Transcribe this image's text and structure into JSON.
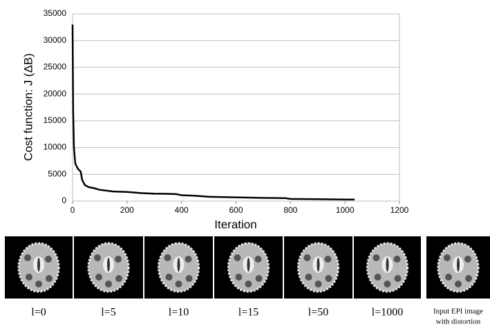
{
  "chart_data": {
    "type": "line",
    "ylabel": "Cost function: J (ΔB)",
    "xlabel": "Iteration",
    "x": [
      0,
      2,
      5,
      10,
      20,
      30,
      35,
      45,
      60,
      80,
      100,
      150,
      200,
      250,
      300,
      350,
      380,
      400,
      450,
      500,
      600,
      700,
      780,
      800,
      900,
      1000,
      1035
    ],
    "series": [
      {
        "color": "#000000",
        "values": [
          33000,
          17000,
          10000,
          7000,
          6000,
          5500,
          4000,
          3000,
          2600,
          2400,
          2100,
          1800,
          1700,
          1500,
          1400,
          1350,
          1300,
          1100,
          1000,
          800,
          700,
          600,
          550,
          400,
          350,
          300,
          300
        ]
      }
    ],
    "xlim": [
      0,
      1200
    ],
    "xticks": [
      0,
      200,
      400,
      600,
      800,
      1000,
      1200
    ],
    "ylim": [
      0,
      35000
    ],
    "yticks": [
      0,
      5000,
      10000,
      15000,
      20000,
      25000,
      30000,
      35000
    ],
    "grid": true
  },
  "panels": {
    "captions": [
      "l=0",
      "l=5",
      "l=10",
      "l=15",
      "l=50",
      "l=1000"
    ],
    "input_caption": [
      "Input EPI image",
      "with distortion"
    ]
  }
}
